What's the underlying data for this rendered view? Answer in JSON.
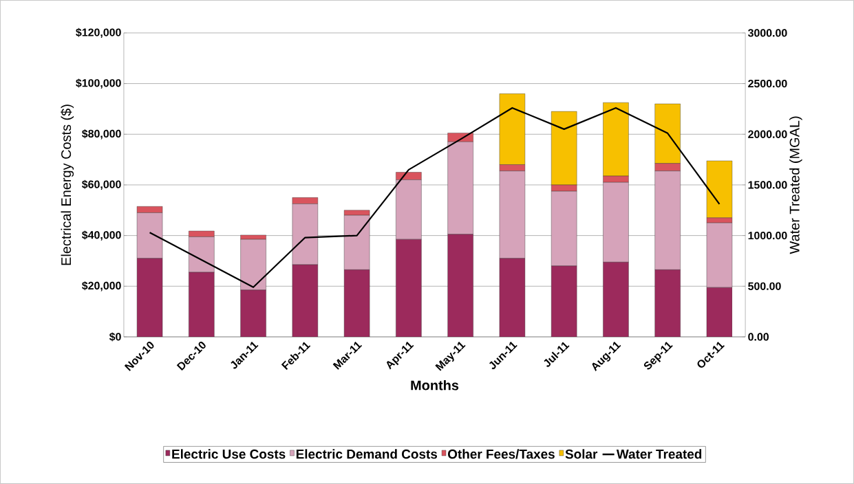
{
  "chart_data": {
    "type": "bar",
    "stacked": true,
    "xlabel": "Months",
    "ylabel": "Electrical Energy Costs ($)",
    "y2label": "Water Treated (MGAL)",
    "categories": [
      "Nov-10",
      "Dec-10",
      "Jan-11",
      "Feb-11",
      "Mar-11",
      "Apr-11",
      "May-11",
      "Jun-11",
      "Jul-11",
      "Aug-11",
      "Sep-11",
      "Oct-11"
    ],
    "series": [
      {
        "name": "Electric Use Costs",
        "color": "#9c2a5c",
        "values": [
          31000,
          25500,
          18500,
          28500,
          26500,
          38500,
          40500,
          31000,
          28000,
          29500,
          26500,
          19500
        ]
      },
      {
        "name": "Electric Demand Costs",
        "color": "#d6a3ba",
        "values": [
          18000,
          14000,
          20000,
          24000,
          21500,
          23500,
          36500,
          34500,
          29500,
          31500,
          39000,
          25500
        ]
      },
      {
        "name": "Other Fees/Taxes",
        "color": "#d9545e",
        "values": [
          2500,
          2300,
          1700,
          2500,
          2000,
          3000,
          3500,
          2500,
          2500,
          2500,
          3000,
          2000
        ]
      },
      {
        "name": "Solar",
        "color": "#f7c000",
        "values": [
          null,
          null,
          null,
          null,
          null,
          null,
          null,
          28000,
          29000,
          29000,
          23500,
          22500
        ]
      },
      {
        "name": "Water Treated",
        "type": "line",
        "axis": "y2",
        "color": "#000000",
        "values": [
          1030,
          760,
          490,
          980,
          1000,
          1650,
          1950,
          2260,
          2050,
          2260,
          2010,
          1310
        ]
      }
    ],
    "ylim": [
      0,
      120000
    ],
    "yticks": [
      {
        "value": 0,
        "label": "$0"
      },
      {
        "value": 20000,
        "label": "$20,000"
      },
      {
        "value": 40000,
        "label": "$40,000"
      },
      {
        "value": 60000,
        "label": "$60,000"
      },
      {
        "value": 80000,
        "label": "$80,000"
      },
      {
        "value": 100000,
        "label": "$100,000"
      },
      {
        "value": 120000,
        "label": "$120,000"
      }
    ],
    "y2lim": [
      0,
      3000
    ],
    "y2ticks": [
      {
        "value": 0,
        "label": "0.00"
      },
      {
        "value": 500,
        "label": "500.00"
      },
      {
        "value": 1000,
        "label": "1000.00"
      },
      {
        "value": 1500,
        "label": "1500.00"
      },
      {
        "value": 2000,
        "label": "2000.00"
      },
      {
        "value": 2500,
        "label": "2500.00"
      },
      {
        "value": 3000,
        "label": "3000.00"
      }
    ],
    "grid": "y",
    "legend": "bottom",
    "marker": "none",
    "line_style": "solid"
  }
}
